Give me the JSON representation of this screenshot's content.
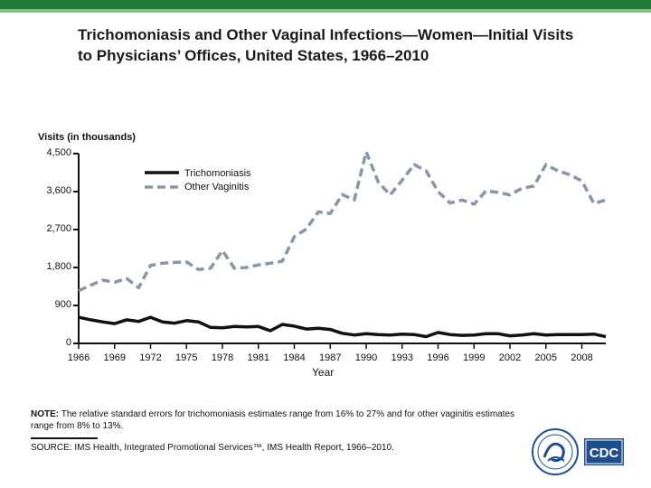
{
  "slide": {
    "title": "Trichomoniasis and Other Vaginal Infections—Women—Initial Visits to Physicians’ Offices, United States, 1966–2010",
    "note_label": "NOTE:",
    "note_text": " The relative standard errors for trichomoniasis estimates range from 16% to 27% and for other vaginitis estimates range from 8% to 13%.",
    "source": "SOURCE: IMS Health, Integrated Promotional Services™, IMS Health Report, 1966–2010.",
    "logo_text": "CDC"
  },
  "colors": {
    "header_dark": "#1f7a3a",
    "header_light": "#7cc47f",
    "trichomoniasis": "#111111",
    "other_vaginitis": "#8a96a8",
    "hhs_blue": "#1f4e8c"
  },
  "chart_data": {
    "type": "line",
    "title": "Trichomoniasis and Other Vaginal Infections—Women—Initial Visits to Physicians’ Offices, United States, 1966–2010",
    "ylabel": "Visits (in thousands)",
    "xlabel": "Year",
    "ylim": [
      0,
      4500
    ],
    "xlim": [
      1966,
      2010
    ],
    "y_ticks": [
      0,
      900,
      1800,
      2700,
      3600,
      4500
    ],
    "y_tick_labels": [
      "0",
      "900",
      "1,800",
      "2,700",
      "3,600",
      "4,500"
    ],
    "x_ticks": [
      1966,
      1969,
      1972,
      1975,
      1978,
      1981,
      1984,
      1987,
      1990,
      1993,
      1996,
      1999,
      2002,
      2005,
      2008
    ],
    "x_tick_labels": [
      "1966",
      "1969",
      "1972",
      "1975",
      "1978",
      "1981",
      "1984",
      "1987",
      "1990",
      "1993",
      "1996",
      "1999",
      "2002",
      "2005",
      "2008"
    ],
    "grid": false,
    "legend_position": "top-center",
    "x": [
      1966,
      1967,
      1968,
      1969,
      1970,
      1971,
      1972,
      1973,
      1974,
      1975,
      1976,
      1977,
      1978,
      1979,
      1980,
      1981,
      1982,
      1983,
      1984,
      1985,
      1986,
      1987,
      1988,
      1989,
      1990,
      1991,
      1992,
      1993,
      1994,
      1995,
      1996,
      1997,
      1998,
      1999,
      2000,
      2001,
      2002,
      2003,
      2004,
      2005,
      2006,
      2007,
      2008,
      2009,
      2010
    ],
    "series": [
      {
        "name": "Trichomoniasis",
        "style": "solid",
        "values": [
          620,
          560,
          510,
          470,
          560,
          520,
          620,
          510,
          480,
          540,
          510,
          380,
          370,
          400,
          390,
          400,
          300,
          450,
          410,
          340,
          360,
          330,
          240,
          200,
          230,
          210,
          200,
          220,
          210,
          160,
          260,
          210,
          190,
          200,
          230,
          230,
          180,
          200,
          230,
          200,
          210,
          210,
          210,
          220,
          160
        ]
      },
      {
        "name": "Other Vaginitis",
        "style": "dashed",
        "values": [
          1250,
          1380,
          1500,
          1450,
          1540,
          1320,
          1850,
          1900,
          1920,
          1930,
          1750,
          1780,
          2200,
          1780,
          1800,
          1860,
          1900,
          1950,
          2530,
          2710,
          3120,
          3080,
          3530,
          3400,
          4540,
          3830,
          3520,
          3870,
          4240,
          4090,
          3600,
          3330,
          3400,
          3300,
          3620,
          3580,
          3520,
          3680,
          3730,
          4240,
          4090,
          4000,
          3850,
          3320,
          3400
        ]
      }
    ]
  }
}
